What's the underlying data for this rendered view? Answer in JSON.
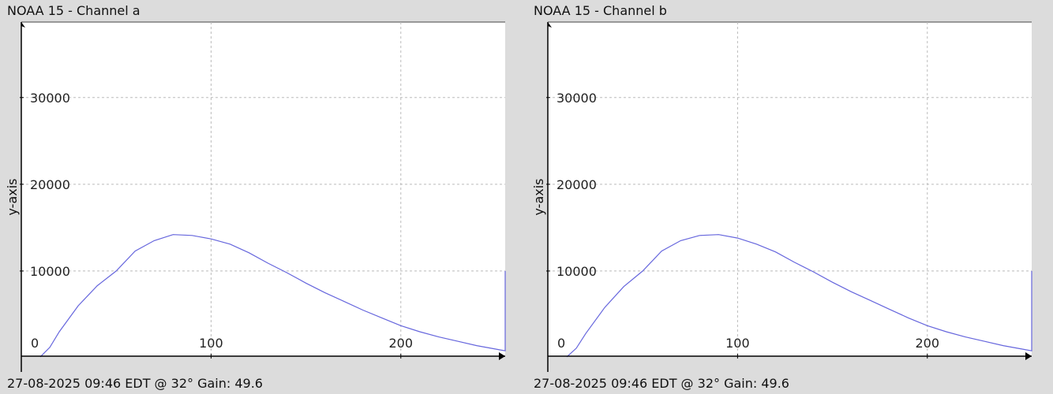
{
  "chart_data": [
    {
      "type": "line",
      "title": "NOAA 15 - Channel a",
      "footer": "27-08-2025 09:46 EDT @ 32° Gain: 49.6",
      "xlabel": "",
      "ylabel": "y-axis",
      "xlim": [
        0,
        255
      ],
      "ylim": [
        0,
        38700
      ],
      "xticks": [
        "0",
        "100",
        "200"
      ],
      "yticks": [
        "30000",
        "20000",
        "10000"
      ],
      "grid": true,
      "series": [
        {
          "name": "histogram",
          "color": "#6666dd",
          "x": [
            10,
            15,
            20,
            30,
            40,
            50,
            60,
            70,
            80,
            90,
            100,
            110,
            120,
            130,
            140,
            150,
            160,
            170,
            180,
            190,
            200,
            210,
            220,
            230,
            240,
            250,
            255,
            255
          ],
          "y": [
            100,
            1200,
            3000,
            6000,
            8300,
            10000,
            12300,
            13500,
            14200,
            14100,
            13700,
            13100,
            12100,
            10900,
            9800,
            8600,
            7500,
            6500,
            5500,
            4600,
            3700,
            3000,
            2400,
            1900,
            1400,
            1000,
            800,
            10000
          ]
        }
      ]
    },
    {
      "type": "line",
      "title": "NOAA 15 - Channel b",
      "footer": "27-08-2025 09:46 EDT @ 32° Gain: 49.6",
      "xlabel": "",
      "ylabel": "y-axis",
      "xlim": [
        0,
        255
      ],
      "ylim": [
        0,
        38700
      ],
      "xticks": [
        "0",
        "100",
        "200"
      ],
      "yticks": [
        "30000",
        "20000",
        "10000"
      ],
      "grid": true,
      "series": [
        {
          "name": "histogram",
          "color": "#6666dd",
          "x": [
            10,
            15,
            20,
            30,
            40,
            50,
            60,
            70,
            80,
            90,
            100,
            110,
            120,
            130,
            140,
            150,
            160,
            170,
            180,
            190,
            200,
            210,
            220,
            230,
            240,
            250,
            255,
            255
          ],
          "y": [
            100,
            1100,
            2800,
            5800,
            8200,
            10000,
            12300,
            13500,
            14100,
            14200,
            13800,
            13100,
            12200,
            11000,
            9900,
            8700,
            7600,
            6600,
            5600,
            4600,
            3700,
            3000,
            2400,
            1900,
            1400,
            1000,
            800,
            10000
          ]
        }
      ]
    }
  ]
}
